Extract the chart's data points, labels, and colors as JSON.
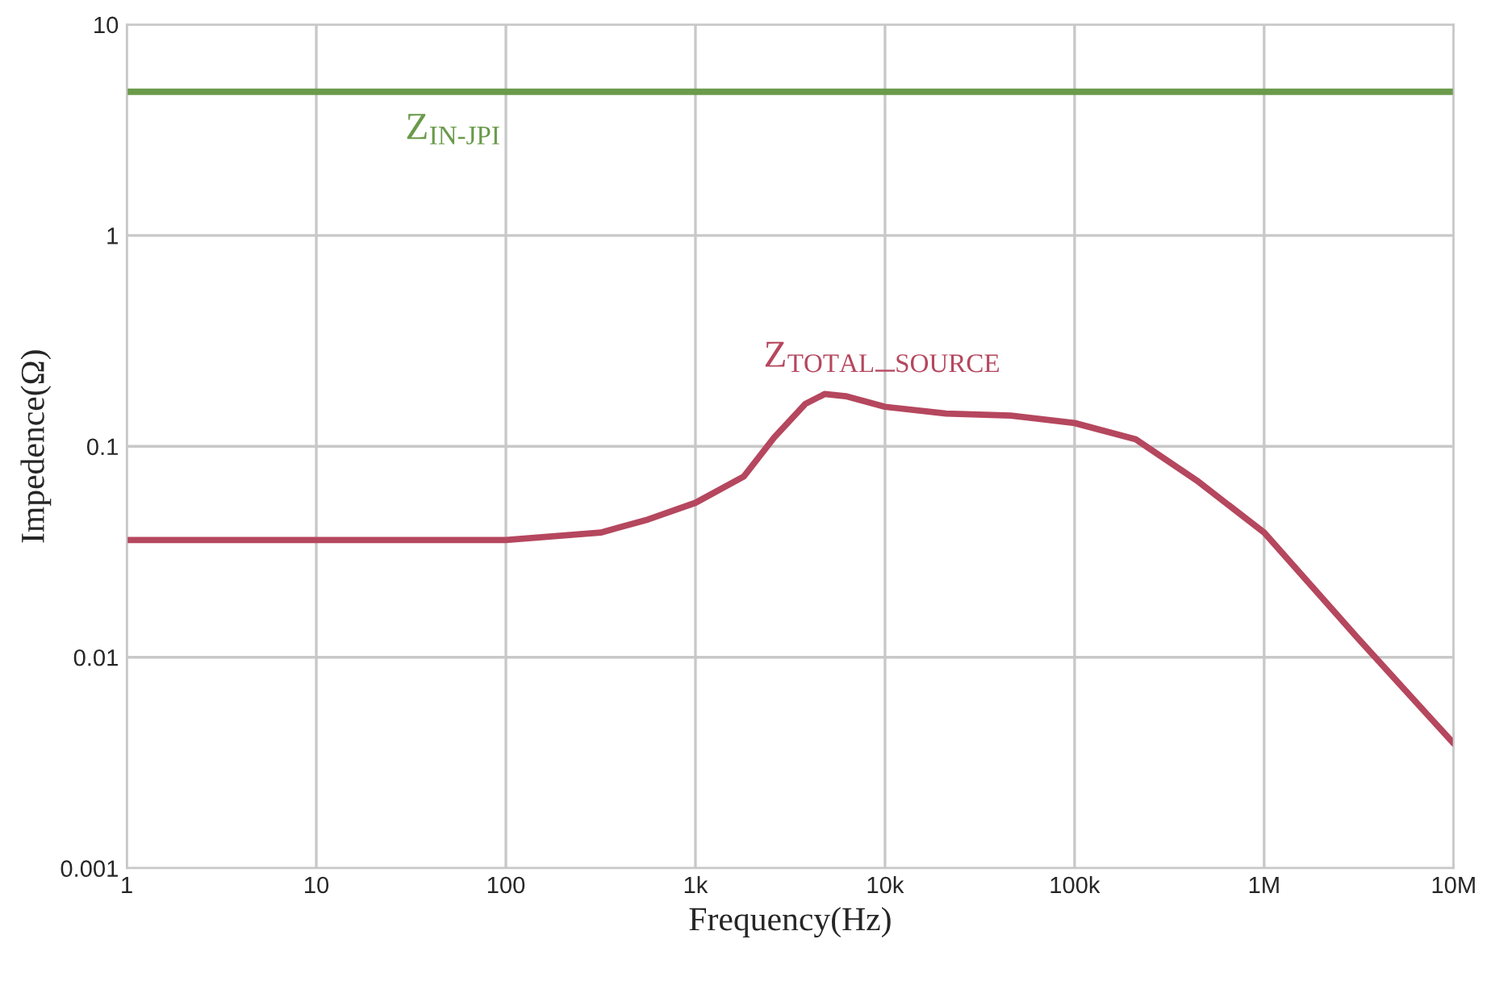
{
  "chart_data": {
    "type": "line",
    "xlabel": "Frequency(Hz)",
    "ylabel": "Impedence(Ω)",
    "log": "xy",
    "grid": true,
    "xlim": [
      1,
      10000000
    ],
    "ylim": [
      0.001,
      10
    ],
    "xticks": [
      1,
      10,
      100,
      {
        "value": 1000,
        "label": "1k"
      },
      {
        "value": 10000,
        "label": "10k"
      },
      {
        "value": 100000,
        "label": "100k"
      },
      {
        "value": 1000000,
        "label": "1M"
      },
      {
        "value": 10000000,
        "label": "10M"
      }
    ],
    "yticks": [
      0.001,
      0.01,
      0.1,
      1,
      10
    ],
    "series": [
      {
        "color": "#6a9a4a",
        "x": [
          1,
          10000000
        ],
        "values": [
          4.8,
          4.8
        ]
      },
      {
        "color": "#b5475e",
        "x": [
          1,
          100,
          316,
          562,
          1000,
          1800,
          2600,
          3800,
          4800,
          6200,
          10000,
          21000,
          46000,
          100000,
          210000,
          450000,
          1000000,
          3100000,
          10000000
        ],
        "values": [
          0.036,
          0.036,
          0.039,
          0.045,
          0.054,
          0.072,
          0.11,
          0.159,
          0.177,
          0.173,
          0.154,
          0.143,
          0.14,
          0.129,
          0.108,
          0.068,
          0.039,
          0.0124,
          0.0039
        ]
      }
    ],
    "annotations": [
      "Z$_{IN-JPI}$",
      "Z$_{TOTAL}$_$_{SOURCE}$"
    ]
  }
}
